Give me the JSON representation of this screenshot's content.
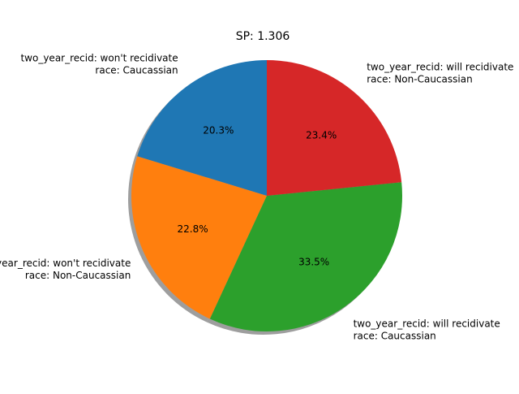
{
  "chart_data": {
    "type": "pie",
    "title": "SP: 1.306",
    "slices": [
      {
        "label_lines": [
          "two_year_recid: won't recidivate",
          "race: Caucassian"
        ],
        "value": 20.3,
        "pct_label": "20.3%",
        "color": "#1f77b4"
      },
      {
        "label_lines": [
          "two_year_recid: won't recidivate",
          "race: Non-Caucassian"
        ],
        "value": 22.8,
        "pct_label": "22.8%",
        "color": "#ff7f0e"
      },
      {
        "label_lines": [
          "two_year_recid: will recidivate",
          "race: Caucassian"
        ],
        "value": 33.5,
        "pct_label": "33.5%",
        "color": "#2ca02c"
      },
      {
        "label_lines": [
          "two_year_recid: will recidivate",
          "race: Non-Caucassian"
        ],
        "value": 23.4,
        "pct_label": "23.4%",
        "color": "#d62728"
      }
    ],
    "start_angle": "top",
    "direction": "counterclockwise",
    "shadow": true
  }
}
